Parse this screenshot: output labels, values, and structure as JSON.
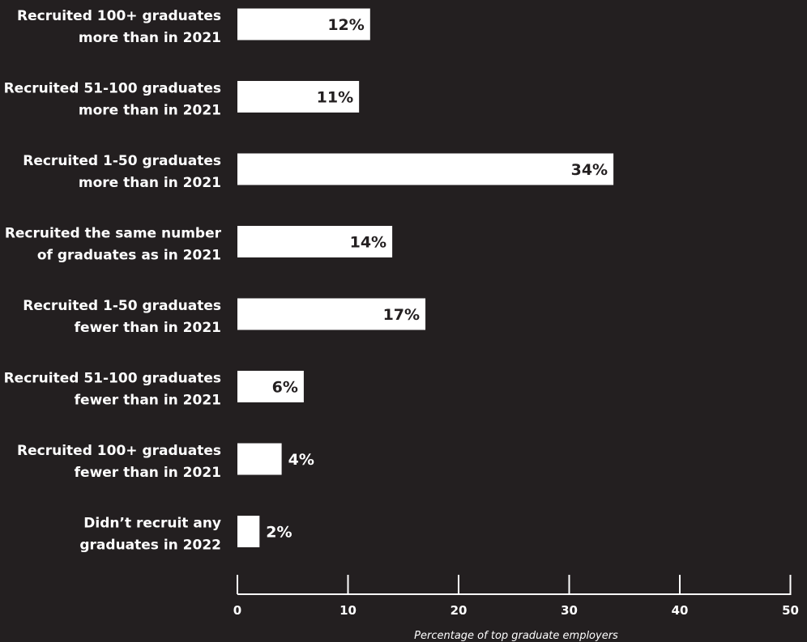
{
  "chart_data": {
    "type": "bar",
    "orientation": "horizontal",
    "title": "",
    "xlabel": "Percentage of top graduate employers",
    "ylabel": "",
    "xlim": [
      0,
      50
    ],
    "xticks": [
      0,
      10,
      20,
      30,
      40,
      50
    ],
    "grid": false,
    "legend": "none",
    "colors": {
      "background": "#231f20",
      "bar": "#ffffff",
      "text": "#ffffff",
      "label_inside": "#231f20"
    },
    "categories": [
      [
        "Recruited 100+ graduates",
        "more than in 2021"
      ],
      [
        "Recruited 51-100 graduates",
        "more than in 2021"
      ],
      [
        "Recruited 1-50 graduates",
        "more than in 2021"
      ],
      [
        "Recruited the same number",
        "of graduates as in 2021"
      ],
      [
        "Recruited 1-50 graduates",
        "fewer than in 2021"
      ],
      [
        "Recruited 51-100 graduates",
        "fewer than in 2021"
      ],
      [
        "Recruited 100+ graduates",
        "fewer than in 2021"
      ],
      [
        "Didn’t recruit any",
        "graduates in 2022"
      ]
    ],
    "values": [
      12,
      11,
      34,
      14,
      17,
      6,
      4,
      2
    ],
    "value_labels": [
      "12%",
      "11%",
      "34%",
      "14%",
      "17%",
      "6%",
      "4%",
      "2%"
    ]
  }
}
